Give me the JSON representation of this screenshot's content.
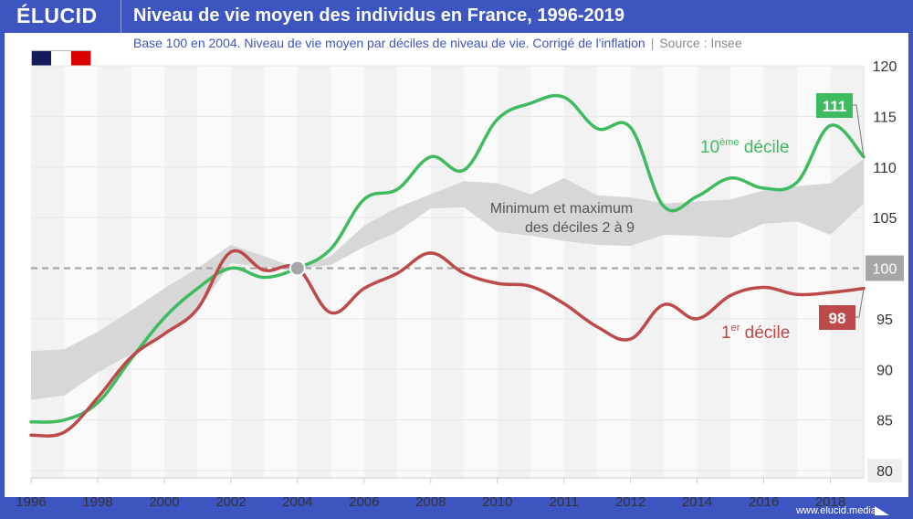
{
  "header": {
    "logo": "ÉLUCID",
    "title": "Niveau de vie moyen des individus en France, 1996-2019",
    "subtitle": "Base 100 en 2004. Niveau de vie moyen par déciles de niveau de vie. Corrigé de l'inflation",
    "separator": "|",
    "source": "Source : Insee"
  },
  "footer": {
    "url": "www.elucid.media"
  },
  "flag": {
    "colors": [
      "#141a5c",
      "#ffffff",
      "#d90000"
    ]
  },
  "colors": {
    "brand": "#3d55c0",
    "top_decile": "#3dbb5e",
    "bottom_decile": "#bd4a4a",
    "band": "#d7d7d7",
    "reference": "#a0a0a0"
  },
  "chart_data": {
    "type": "line",
    "title": "Niveau de vie moyen des individus en France, 1996-2019",
    "subtitle": "Base 100 en 2004. Niveau de vie moyen par déciles de niveau de vie. Corrigé de l'inflation",
    "xlabel": "",
    "ylabel": "",
    "ylim": [
      80,
      120
    ],
    "yticks": [
      80,
      85,
      90,
      95,
      100,
      105,
      110,
      115,
      120
    ],
    "x_count": 26,
    "xtick_labels": [
      {
        "index": 0,
        "label": "1996"
      },
      {
        "index": 2,
        "label": "1998"
      },
      {
        "index": 4,
        "label": "2000"
      },
      {
        "index": 6,
        "label": "2002"
      },
      {
        "index": 8,
        "label": "2004"
      },
      {
        "index": 10,
        "label": "2006"
      },
      {
        "index": 12,
        "label": "2008"
      },
      {
        "index": 14,
        "label": "2010"
      },
      {
        "index": 16,
        "label": "2011"
      },
      {
        "index": 18,
        "label": "2012"
      },
      {
        "index": 20,
        "label": "2014"
      },
      {
        "index": 22,
        "label": "2016"
      },
      {
        "index": 24,
        "label": "2018"
      }
    ],
    "grid": true,
    "reference_line": {
      "value": 100,
      "label": "100",
      "style": "dashed"
    },
    "base_point": {
      "index": 8,
      "value": 100
    },
    "series": [
      {
        "name": "10ème décile",
        "label_main": "10",
        "label_sup": "ème",
        "label_rest": " décile",
        "end_label": "111",
        "values": [
          84.8,
          85.0,
          86.7,
          91.0,
          95.1,
          98.0,
          100.0,
          99.1,
          100.0,
          101.9,
          106.8,
          107.8,
          111.0,
          109.7,
          114.7,
          116.3,
          116.9,
          113.8,
          113.9,
          106.1,
          107.1,
          108.9,
          107.9,
          108.5,
          114.1,
          111.0
        ]
      },
      {
        "name": "1er décile",
        "label_main": "1",
        "label_sup": "er",
        "label_rest": " décile",
        "end_label": "98",
        "values": [
          83.5,
          83.8,
          87.2,
          91.2,
          93.5,
          96.0,
          101.6,
          99.8,
          100.0,
          95.6,
          98.0,
          99.5,
          101.5,
          99.5,
          98.5,
          98.2,
          96.5,
          94.2,
          93.0,
          96.4,
          95.0,
          97.3,
          98.1,
          97.4,
          97.6,
          98.0
        ]
      }
    ],
    "band": {
      "name": "Minimum et maximum des déciles 2 à 9",
      "label_line1": "Minimum et maximum",
      "label_line2": "des déciles 2 à 9",
      "upper": [
        91.8,
        92.0,
        93.7,
        95.8,
        98.0,
        100.0,
        102.3,
        101.2,
        100.0,
        101.2,
        104.2,
        106.0,
        107.3,
        108.6,
        108.4,
        107.3,
        108.9,
        107.2,
        107.0,
        106.4,
        106.6,
        106.8,
        107.7,
        108.1,
        108.4,
        110.8
      ],
      "lower": [
        87.0,
        87.4,
        89.7,
        91.5,
        93.3,
        95.8,
        100.5,
        100.1,
        100.0,
        100.3,
        102.1,
        103.6,
        105.9,
        106.0,
        103.6,
        103.2,
        102.7,
        102.3,
        102.2,
        103.3,
        103.2,
        103.0,
        104.4,
        104.6,
        103.3,
        106.4
      ]
    }
  }
}
